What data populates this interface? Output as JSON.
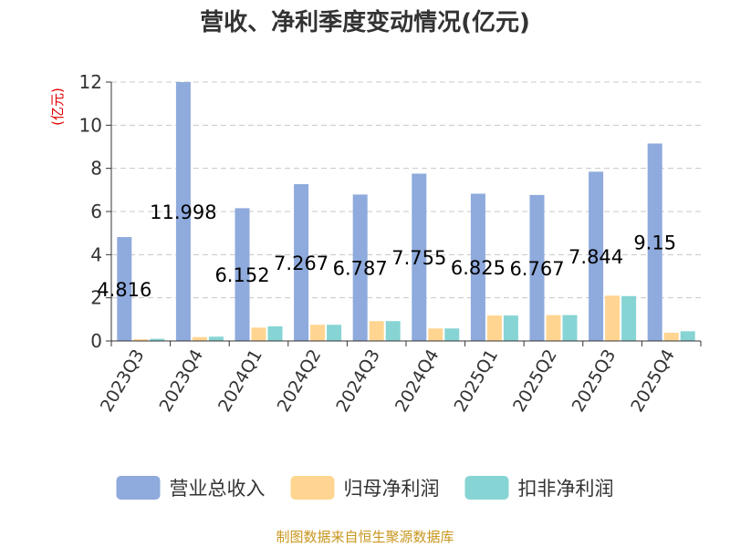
{
  "chart_data": {
    "type": "bar",
    "title": "营收、净利季度变动情况(亿元)",
    "ylabel": "(亿元)",
    "xlabel": "",
    "ylim": [
      0,
      12
    ],
    "yticks": [
      0,
      2,
      4,
      6,
      8,
      10,
      12
    ],
    "grid": true,
    "legend_position": "bottom",
    "categories": [
      "2023Q3",
      "2023Q4",
      "2024Q1",
      "2024Q2",
      "2024Q3",
      "2024Q4",
      "2025Q1",
      "2025Q2",
      "2025Q3",
      "2025Q4"
    ],
    "series": [
      {
        "name": "营业总收入",
        "color": "#8faadc",
        "values": [
          4.816,
          11.998,
          6.152,
          7.267,
          6.787,
          7.755,
          6.825,
          6.767,
          7.844,
          9.15
        ],
        "data_labels": [
          "4.816",
          "11.998",
          "6.152",
          "7.267",
          "6.787",
          "7.755",
          "6.825",
          "6.767",
          "7.844",
          "9.15"
        ]
      },
      {
        "name": "归母净利润",
        "color": "#ffd591",
        "values": [
          0.08,
          0.18,
          0.62,
          0.75,
          0.92,
          0.58,
          1.18,
          1.2,
          2.1,
          0.38
        ]
      },
      {
        "name": "扣非净利润",
        "color": "#87d4d4",
        "values": [
          0.1,
          0.2,
          0.68,
          0.75,
          0.92,
          0.58,
          1.18,
          1.2,
          2.08,
          0.45
        ]
      }
    ],
    "source": "制图数据来自恒生聚源数据库"
  }
}
